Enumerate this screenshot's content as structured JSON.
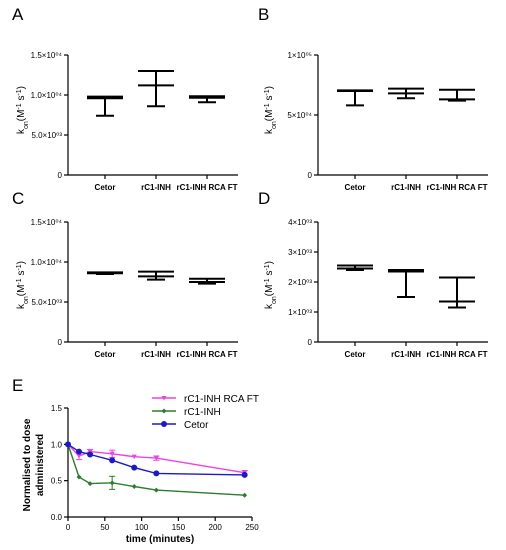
{
  "panels": [
    {
      "label": "A",
      "ylabel": "k_on(M^-1 s^-1)",
      "yticks": [
        "0",
        "5.0×10⁰³",
        "1.0×10⁰⁴",
        "1.5×10⁰⁴"
      ],
      "categories": [
        "Cetor",
        "rC1-INH",
        "rC1-INH RCA FT"
      ]
    },
    {
      "label": "B",
      "ylabel": "k_on(M^-1 s^-1)",
      "yticks": [
        "0",
        "5×10⁰⁴",
        "1×10⁰⁵"
      ],
      "categories": [
        "Cetor",
        "rC1-INH",
        "rC1-INH RCA FT"
      ]
    },
    {
      "label": "C",
      "ylabel": "k_on(M^-1 s^-1)",
      "yticks": [
        "0",
        "5.0×10⁰³",
        "1.0×10⁰⁴",
        "1.5×10⁰⁴"
      ],
      "categories": [
        "Cetor",
        "rC1-INH",
        "rC1-INH RCA FT"
      ]
    },
    {
      "label": "D",
      "ylabel": "k_on(M^-1 s^-1)",
      "yticks": [
        "0",
        "1×10⁰³",
        "2×10⁰³",
        "3×10⁰³",
        "4×10⁰³"
      ],
      "categories": [
        "Cetor",
        "rC1-INH",
        "rC1-INH RCA FT"
      ]
    },
    {
      "label": "E",
      "ylabel_line1": "Normalised to dose",
      "ylabel_line2": "administered",
      "xlabel": "time (minutes)",
      "yticks": [
        "0.0",
        "0.5",
        "1.0",
        "1.5"
      ],
      "xticks": [
        "0",
        "50",
        "100",
        "150",
        "200",
        "250"
      ]
    }
  ],
  "chart_data": [
    {
      "type": "box",
      "panel": "A",
      "ylim": [
        0,
        15000
      ],
      "categories": [
        "Cetor",
        "rC1-INH",
        "rC1-INH RCA FT"
      ],
      "min": [
        7400,
        8600,
        9100
      ],
      "median": [
        9600,
        11200,
        9650
      ],
      "max": [
        9800,
        13000,
        9850
      ]
    },
    {
      "type": "box",
      "panel": "B",
      "ylim": [
        0,
        100000
      ],
      "categories": [
        "Cetor",
        "rC1-INH",
        "rC1-INH RCA FT"
      ],
      "min": [
        58000,
        64000,
        62000
      ],
      "median": [
        70000,
        68000,
        63000
      ],
      "max": [
        70500,
        72000,
        71000
      ]
    },
    {
      "type": "box",
      "panel": "C",
      "ylim": [
        0,
        15000
      ],
      "categories": [
        "Cetor",
        "rC1-INH",
        "rC1-INH RCA FT"
      ],
      "min": [
        8500,
        7800,
        7300
      ],
      "median": [
        8600,
        8200,
        7500
      ],
      "max": [
        8700,
        8800,
        7900
      ]
    },
    {
      "type": "box",
      "panel": "D",
      "ylim": [
        0,
        4000
      ],
      "categories": [
        "Cetor",
        "rC1-INH",
        "rC1-INH RCA FT"
      ],
      "min": [
        2400,
        1500,
        1150
      ],
      "median": [
        2450,
        2350,
        1350
      ],
      "max": [
        2550,
        2400,
        2150
      ]
    },
    {
      "type": "line",
      "panel": "E",
      "xlim": [
        0,
        250
      ],
      "ylim": [
        0,
        1.5
      ],
      "legend_position": "top-center",
      "series": [
        {
          "name": "rC1-INH RCA FT",
          "color": "#ee44dd",
          "x": [
            0,
            15,
            30,
            60,
            90,
            120,
            240
          ],
          "y": [
            1.0,
            0.84,
            0.9,
            0.87,
            0.83,
            0.81,
            0.61
          ],
          "err": [
            0,
            0.05,
            0.03,
            0.05,
            0,
            0.03,
            0.03
          ]
        },
        {
          "name": "rC1-INH",
          "color": "#2d7d2d",
          "x": [
            0,
            15,
            30,
            60,
            90,
            120,
            240
          ],
          "y": [
            1.0,
            0.55,
            0.46,
            0.47,
            0.42,
            0.37,
            0.3
          ],
          "err": [
            0,
            0,
            0,
            0.09,
            0,
            0,
            0
          ]
        },
        {
          "name": "Cetor",
          "color": "#1a1acc",
          "x": [
            0,
            15,
            30,
            60,
            90,
            120,
            240
          ],
          "y": [
            1.0,
            0.9,
            0.86,
            0.78,
            0.68,
            0.6,
            0.58
          ],
          "err": [
            0,
            0,
            0,
            0,
            0,
            0,
            0
          ]
        }
      ]
    }
  ]
}
